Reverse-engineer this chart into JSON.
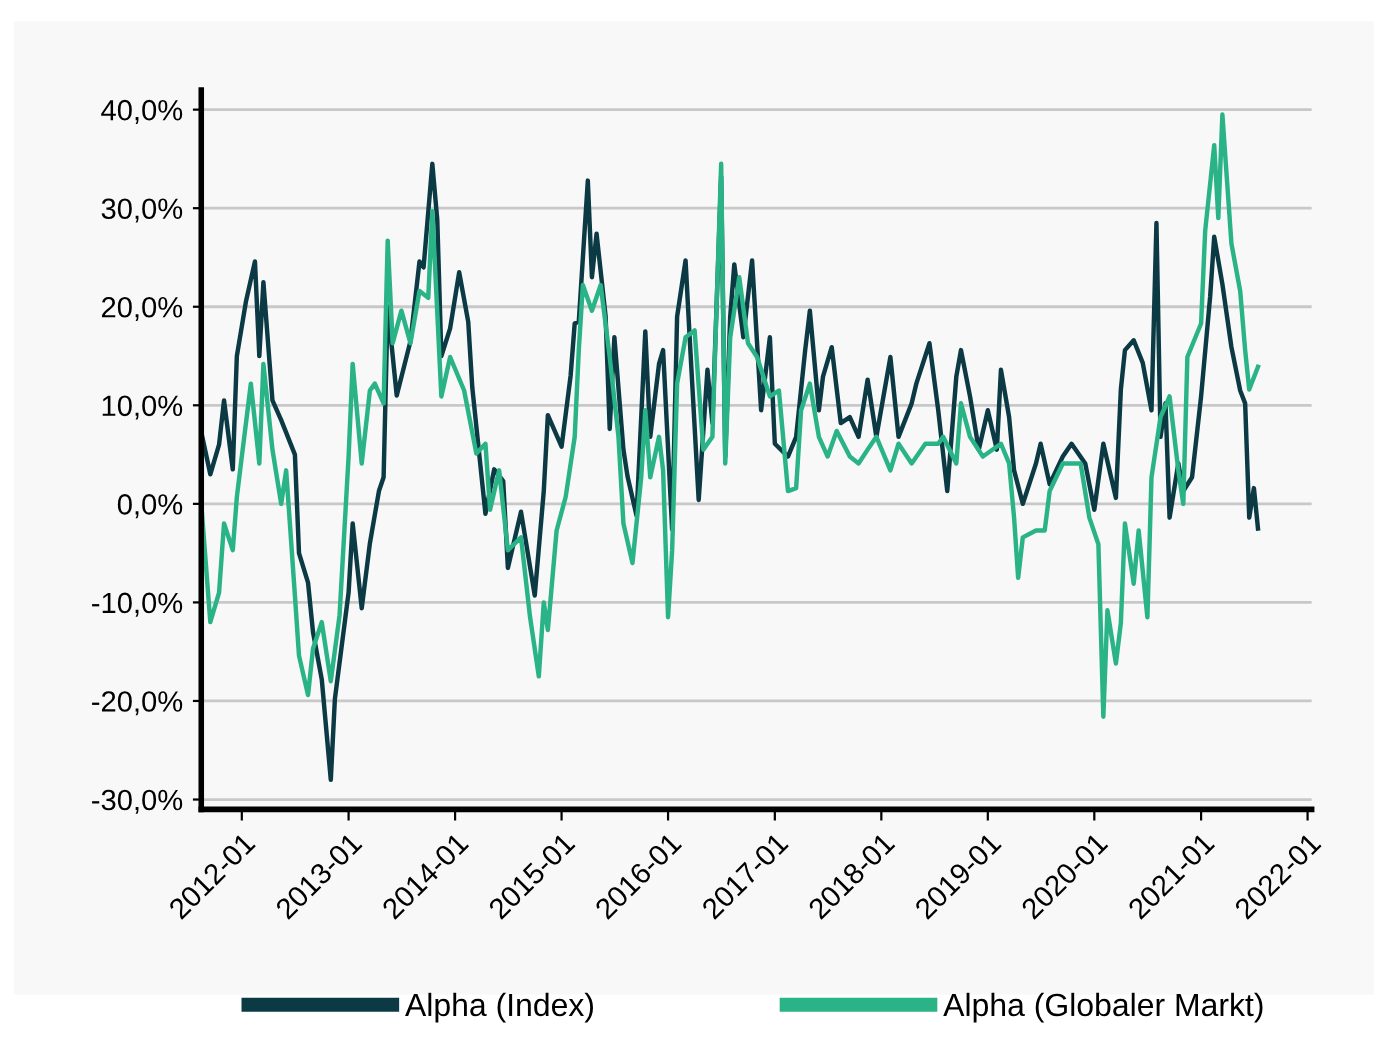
{
  "chart_data": {
    "type": "line",
    "xlim": [
      "2011-08-15",
      "2022-01-15"
    ],
    "xticks": [
      {
        "value": "2012-01-01",
        "label": "2012-01"
      },
      {
        "value": "2013-01-01",
        "label": "2013-01"
      },
      {
        "value": "2014-01-01",
        "label": "2014-01"
      },
      {
        "value": "2015-01-01",
        "label": "2015-01"
      },
      {
        "value": "2016-01-01",
        "label": "2016-01"
      },
      {
        "value": "2017-01-01",
        "label": "2017-01"
      },
      {
        "value": "2018-01-01",
        "label": "2018-01"
      },
      {
        "value": "2019-01-01",
        "label": "2019-01"
      },
      {
        "value": "2020-01-01",
        "label": "2020-01"
      },
      {
        "value": "2021-01-01",
        "label": "2021-01"
      },
      {
        "value": "2022-01-01",
        "label": "2022-01"
      }
    ],
    "ylim": [
      -31,
      42
    ],
    "yticks": [
      {
        "value": -30,
        "label": "-30,0%"
      },
      {
        "value": -20,
        "label": "-20,0%"
      },
      {
        "value": -10,
        "label": "-10,0%"
      },
      {
        "value": 0,
        "label": "0,0%"
      },
      {
        "value": 10,
        "label": "10,0%"
      },
      {
        "value": 20,
        "label": "20,0%"
      },
      {
        "value": 30,
        "label": "30,0%"
      },
      {
        "value": 40,
        "label": "40,0%"
      }
    ],
    "grid": "y",
    "legend": "bottom",
    "marker": "none",
    "line_style": "solid",
    "series": [
      {
        "name": "Alpha (Index)",
        "color": "#0b3a44",
        "x": [
          "2011-08-15",
          "2011-09-15",
          "2011-10-15",
          "2011-11-01",
          "2011-12-01",
          "2011-12-15",
          "2012-01-15",
          "2012-02-15",
          "2012-03-01",
          "2012-03-15",
          "2012-04-15",
          "2012-05-15",
          "2012-07-01",
          "2012-07-15",
          "2012-08-15",
          "2012-09-01",
          "2012-10-01",
          "2012-11-01",
          "2012-11-15",
          "2013-01-01",
          "2013-01-15",
          "2013-02-15",
          "2013-03-15",
          "2013-04-15",
          "2013-05-01",
          "2013-05-15",
          "2013-06-15",
          "2013-08-01",
          "2013-09-01",
          "2013-09-15",
          "2013-10-15",
          "2013-11-01",
          "2013-11-15",
          "2013-12-15",
          "2014-01-15",
          "2014-02-15",
          "2014-03-01",
          "2014-04-15",
          "2014-05-15",
          "2014-06-15",
          "2014-07-01",
          "2014-08-15",
          "2014-10-01",
          "2014-11-01",
          "2014-11-15",
          "2015-01-01",
          "2015-02-01",
          "2015-02-15",
          "2015-03-01",
          "2015-04-01",
          "2015-04-15",
          "2015-05-01",
          "2015-06-01",
          "2015-06-15",
          "2015-07-01",
          "2015-08-01",
          "2015-08-15",
          "2015-09-15",
          "2015-10-15",
          "2015-11-01",
          "2015-12-01",
          "2015-12-15",
          "2016-01-15",
          "2016-02-01",
          "2016-03-01",
          "2016-03-15",
          "2016-04-15",
          "2016-05-15",
          "2016-06-01",
          "2016-07-01",
          "2016-07-15",
          "2016-08-01",
          "2016-08-15",
          "2016-09-15",
          "2016-10-15",
          "2016-11-15",
          "2016-12-15",
          "2017-01-01",
          "2017-02-15",
          "2017-03-15",
          "2017-04-15",
          "2017-05-01",
          "2017-06-01",
          "2017-06-15",
          "2017-07-15",
          "2017-08-15",
          "2017-09-15",
          "2017-10-15",
          "2017-11-15",
          "2017-12-15",
          "2018-02-01",
          "2018-03-01",
          "2018-04-15",
          "2018-05-01",
          "2018-06-15",
          "2018-07-15",
          "2018-08-15",
          "2018-09-15",
          "2018-10-01",
          "2018-11-01",
          "2018-12-01",
          "2019-01-01",
          "2019-02-01",
          "2019-02-15",
          "2019-03-15",
          "2019-04-01",
          "2019-05-01",
          "2019-06-15",
          "2019-07-01",
          "2019-08-01",
          "2019-09-15",
          "2019-10-15",
          "2019-12-01",
          "2020-01-01",
          "2020-02-01",
          "2020-03-15",
          "2020-04-01",
          "2020-04-15",
          "2020-05-15",
          "2020-06-15",
          "2020-07-15",
          "2020-08-01",
          "2020-08-15",
          "2020-09-01",
          "2020-09-15",
          "2020-10-15",
          "2020-11-01",
          "2020-12-01",
          "2021-01-01",
          "2021-02-01",
          "2021-02-15",
          "2021-03-15",
          "2021-04-15",
          "2021-05-15",
          "2021-06-01",
          "2021-06-15",
          "2021-07-01",
          "2021-07-15"
        ],
        "values": [
          7.3,
          3.0,
          6.0,
          10.5,
          3.5,
          15,
          20.5,
          24.6,
          15,
          22.5,
          10.5,
          8.5,
          5,
          -5,
          -8,
          -13,
          -17.8,
          -28,
          -19.8,
          -9,
          -2,
          -10.6,
          -4,
          1.3,
          2.7,
          20,
          11,
          16.5,
          24.6,
          24,
          34.5,
          28.8,
          15,
          17.8,
          23.5,
          18.5,
          11.8,
          -1,
          3.5,
          2.3,
          -6.5,
          -0.8,
          -9.3,
          1.3,
          9,
          5.8,
          13,
          18.3,
          18.5,
          32.8,
          23,
          27.4,
          19,
          7.6,
          16.9,
          5.5,
          2.8,
          -1.2,
          17.5,
          6.8,
          14.2,
          15.6,
          -2.6,
          19,
          24.7,
          16.9,
          0.4,
          13.6,
          8.2,
          33.2,
          4.8,
          19,
          24.3,
          16.9,
          24.7,
          9.5,
          16.9,
          6.1,
          4.8,
          6.8,
          15.6,
          19.6,
          9.5,
          12.9,
          15.9,
          8.2,
          8.8,
          6.8,
          12.6,
          6.8,
          14.9,
          6.8,
          10.2,
          12.2,
          16.3,
          9.5,
          1.3,
          12.9,
          15.6,
          10.9,
          5.5,
          9.5,
          5.5,
          13.6,
          8.8,
          3.4,
          0,
          4.1,
          6.1,
          2,
          4.8,
          6.1,
          4.1,
          -0.6,
          6.1,
          0.6,
          11.6,
          15.6,
          16.6,
          14.3,
          9.5,
          28.5,
          6.8,
          10.2,
          -1.4,
          4.1,
          1.3,
          2.7,
          10.9,
          21,
          27.1,
          22.3,
          15.9,
          11.5,
          10.2,
          -1.4,
          1.6,
          -2.5
        ]
      },
      {
        "name": "Alpha (Globaler Markt)",
        "color": "#2ab386",
        "x": [
          "2011-08-15",
          "2011-09-15",
          "2011-10-15",
          "2011-11-01",
          "2011-12-01",
          "2011-12-15",
          "2012-01-01",
          "2012-02-01",
          "2012-03-01",
          "2012-03-15",
          "2012-04-15",
          "2012-05-15",
          "2012-06-01",
          "2012-07-01",
          "2012-07-15",
          "2012-08-15",
          "2012-09-01",
          "2012-10-01",
          "2012-11-01",
          "2012-12-01",
          "2013-01-01",
          "2013-01-15",
          "2013-02-15",
          "2013-03-15",
          "2013-04-01",
          "2013-05-01",
          "2013-05-15",
          "2013-06-01",
          "2013-07-01",
          "2013-08-01",
          "2013-09-01",
          "2013-10-01",
          "2013-10-15",
          "2013-11-15",
          "2013-12-15",
          "2014-02-01",
          "2014-03-15",
          "2014-04-15",
          "2014-05-01",
          "2014-06-01",
          "2014-07-01",
          "2014-08-15",
          "2014-09-15",
          "2014-10-15",
          "2014-11-01",
          "2014-11-15",
          "2014-12-15",
          "2015-01-15",
          "2015-02-15",
          "2015-03-01",
          "2015-03-15",
          "2015-04-15",
          "2015-05-15",
          "2015-06-15",
          "2015-07-15",
          "2015-08-01",
          "2015-09-01",
          "2015-10-01",
          "2015-10-15",
          "2015-11-01",
          "2015-12-01",
          "2015-12-15",
          "2016-01-01",
          "2016-01-15",
          "2016-02-01",
          "2016-03-01",
          "2016-04-01",
          "2016-05-01",
          "2016-06-01",
          "2016-07-01",
          "2016-07-15",
          "2016-08-01",
          "2016-09-01",
          "2016-10-01",
          "2016-11-01",
          "2016-12-15",
          "2017-01-15",
          "2017-02-15",
          "2017-03-15",
          "2017-04-01",
          "2017-05-01",
          "2017-06-01",
          "2017-07-01",
          "2017-08-01",
          "2017-09-15",
          "2017-10-15",
          "2017-11-15",
          "2017-12-15",
          "2018-02-01",
          "2018-03-01",
          "2018-04-15",
          "2018-06-01",
          "2018-07-15",
          "2018-08-01",
          "2018-09-15",
          "2018-10-01",
          "2018-11-01",
          "2018-12-15",
          "2019-02-15",
          "2019-03-15",
          "2019-04-01",
          "2019-04-15",
          "2019-05-01",
          "2019-06-15",
          "2019-07-15",
          "2019-08-01",
          "2019-09-15",
          "2019-11-15",
          "2019-12-15",
          "2020-01-15",
          "2020-02-01",
          "2020-02-15",
          "2020-03-15",
          "2020-04-01",
          "2020-04-15",
          "2020-05-15",
          "2020-06-01",
          "2020-07-01",
          "2020-07-15",
          "2020-08-15",
          "2020-09-15",
          "2020-10-15",
          "2020-11-01",
          "2020-11-15",
          "2021-01-01",
          "2021-01-15",
          "2021-02-15",
          "2021-03-01",
          "2021-03-15",
          "2021-04-15",
          "2021-05-15",
          "2021-06-01",
          "2021-06-15",
          "2021-07-15"
        ],
        "values": [
          0,
          -12,
          -9,
          -2,
          -4.7,
          0.7,
          4.8,
          12.2,
          4.1,
          14.2,
          5.5,
          0,
          3.4,
          -9.3,
          -15.4,
          -19.4,
          -14.7,
          -12,
          -18,
          -11.3,
          4.8,
          14.2,
          4.1,
          11.5,
          12.2,
          10.2,
          26.7,
          16.3,
          19.6,
          16.3,
          21.6,
          20.9,
          29.7,
          10.9,
          14.9,
          11.5,
          5.1,
          6.1,
          -0.6,
          3.4,
          -4.7,
          -3.4,
          -11.5,
          -17.5,
          -10,
          -12.8,
          -2.7,
          0.7,
          6.8,
          15.6,
          22.2,
          19.6,
          22.2,
          14.9,
          6.8,
          -2,
          -6,
          2.7,
          9.5,
          2.7,
          6.8,
          3.4,
          -11.5,
          -4.7,
          12.2,
          16.9,
          17.6,
          5.5,
          6.8,
          34.5,
          4.1,
          16.9,
          23,
          16.3,
          14.9,
          10.9,
          11.5,
          1.3,
          1.6,
          9.5,
          12.2,
          6.8,
          4.8,
          7.4,
          4.8,
          4.1,
          5.5,
          6.8,
          3.4,
          6.1,
          4.1,
          6.1,
          6.1,
          6.8,
          4.1,
          10.2,
          6.8,
          4.8,
          6.1,
          4.1,
          -1.4,
          -7.5,
          -3.4,
          -2.7,
          -2.7,
          1.3,
          4.1,
          4.1,
          -1.4,
          -4.1,
          -21.6,
          -10.8,
          -16.2,
          -12.1,
          -2,
          -8.1,
          -2.7,
          -11.5,
          2.7,
          8.8,
          10.9,
          3.4,
          0,
          14.9,
          18.3,
          27.7,
          36.4,
          29,
          39.5,
          26.4,
          21.6,
          15.6,
          11.6,
          13.9
        ]
      }
    ]
  }
}
